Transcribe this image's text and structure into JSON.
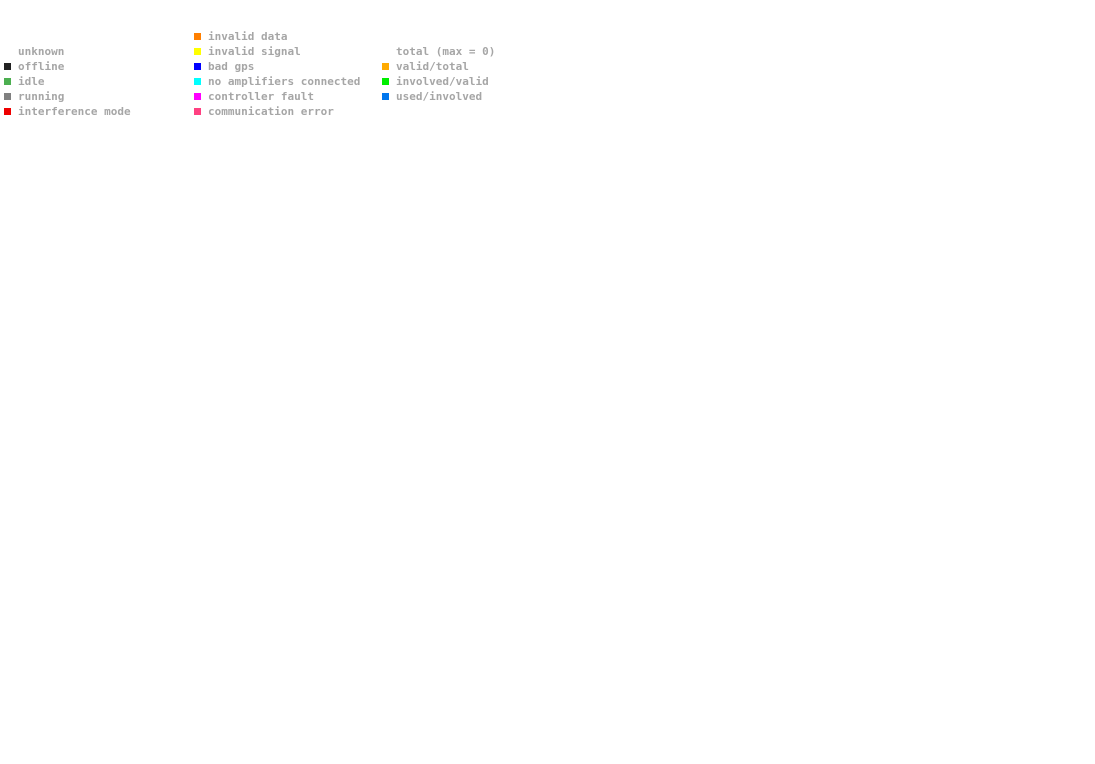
{
  "legend": {
    "station_status": [
      {
        "label": "",
        "color": "transparent"
      },
      {
        "label": "unknown",
        "color": "transparent"
      },
      {
        "label": "offline",
        "color": "#222222"
      },
      {
        "label": "idle",
        "color": "#4caf50"
      },
      {
        "label": "running",
        "color": "#808080"
      },
      {
        "label": "interference mode",
        "color": "#ee0000"
      }
    ],
    "errors": [
      {
        "label": "invalid data",
        "color": "#ff7f00"
      },
      {
        "label": "invalid signal",
        "color": "#ffff00"
      },
      {
        "label": "bad gps",
        "color": "#0000ff"
      },
      {
        "label": "no amplifiers connected",
        "color": "#00ffff"
      },
      {
        "label": "controller fault",
        "color": "#ff00ff"
      },
      {
        "label": "communication error",
        "color": "#ff4081"
      }
    ],
    "ratios": [
      {
        "label": "",
        "color": "transparent"
      },
      {
        "label": "total (max = 0)",
        "color": "transparent"
      },
      {
        "label": "valid/total",
        "color": "#ffaa00"
      },
      {
        "label": "involved/valid",
        "color": "#00ee00"
      },
      {
        "label": "used/involved",
        "color": "#0077ee"
      }
    ]
  }
}
